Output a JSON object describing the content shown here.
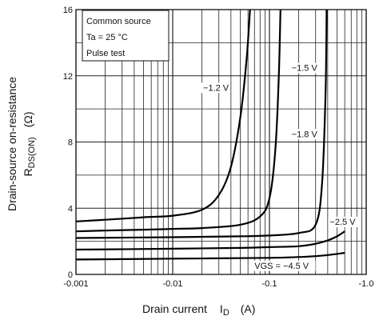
{
  "chart_data": {
    "type": "line",
    "x_scale": "log",
    "x_range": [
      -0.001,
      -1.0
    ],
    "y_range": [
      0,
      16
    ],
    "x_ticks": [
      "-0.001",
      "-0.01",
      "-0.1",
      "-1.0"
    ],
    "y_ticks": [
      "0",
      "4",
      "8",
      "12",
      "16"
    ],
    "xlabel": {
      "text": "Drain current",
      "symbol": "I",
      "sub": "D",
      "unit": "(A)"
    },
    "ylabel": {
      "line1": "Drain-source on-resistance",
      "symbol": "R",
      "sub": "DS(ON)",
      "unit": "(Ω)"
    },
    "annotations": [
      "Common source",
      "Ta = 25 °C",
      "Pulse test"
    ],
    "grid": true,
    "series": [
      {
        "name": "−1.2 V",
        "x": [
          -0.001,
          -0.002,
          -0.005,
          -0.01,
          -0.02,
          -0.03,
          -0.04,
          -0.05,
          -0.058,
          -0.063
        ],
        "y": [
          3.2,
          3.3,
          3.45,
          3.55,
          3.9,
          4.8,
          6.5,
          9.5,
          13.0,
          16.0
        ]
      },
      {
        "name": "−1.5 V",
        "x": [
          -0.001,
          -0.002,
          -0.005,
          -0.01,
          -0.02,
          -0.05,
          -0.08,
          -0.1,
          -0.115,
          -0.125,
          -0.13
        ],
        "y": [
          2.6,
          2.65,
          2.7,
          2.75,
          2.8,
          3.0,
          3.5,
          4.6,
          7.5,
          12.0,
          16.0
        ]
      },
      {
        "name": "−1.8 V",
        "x": [
          -0.001,
          -0.01,
          -0.05,
          -0.1,
          -0.2,
          -0.3,
          -0.35,
          -0.38,
          -0.39
        ],
        "y": [
          2.2,
          2.25,
          2.3,
          2.35,
          2.5,
          3.0,
          5.5,
          11.0,
          16.0
        ]
      },
      {
        "name": "−2.5 V",
        "x": [
          -0.001,
          -0.01,
          -0.05,
          -0.1,
          -0.2,
          -0.3,
          -0.4,
          -0.5,
          -0.6
        ],
        "y": [
          1.5,
          1.55,
          1.6,
          1.65,
          1.7,
          1.85,
          2.05,
          2.3,
          2.6
        ]
      },
      {
        "name": "VGS = −4.5 V",
        "x": [
          -0.001,
          -0.01,
          -0.1,
          -0.3,
          -0.6
        ],
        "y": [
          0.9,
          0.95,
          1.0,
          1.1,
          1.3
        ]
      }
    ]
  }
}
